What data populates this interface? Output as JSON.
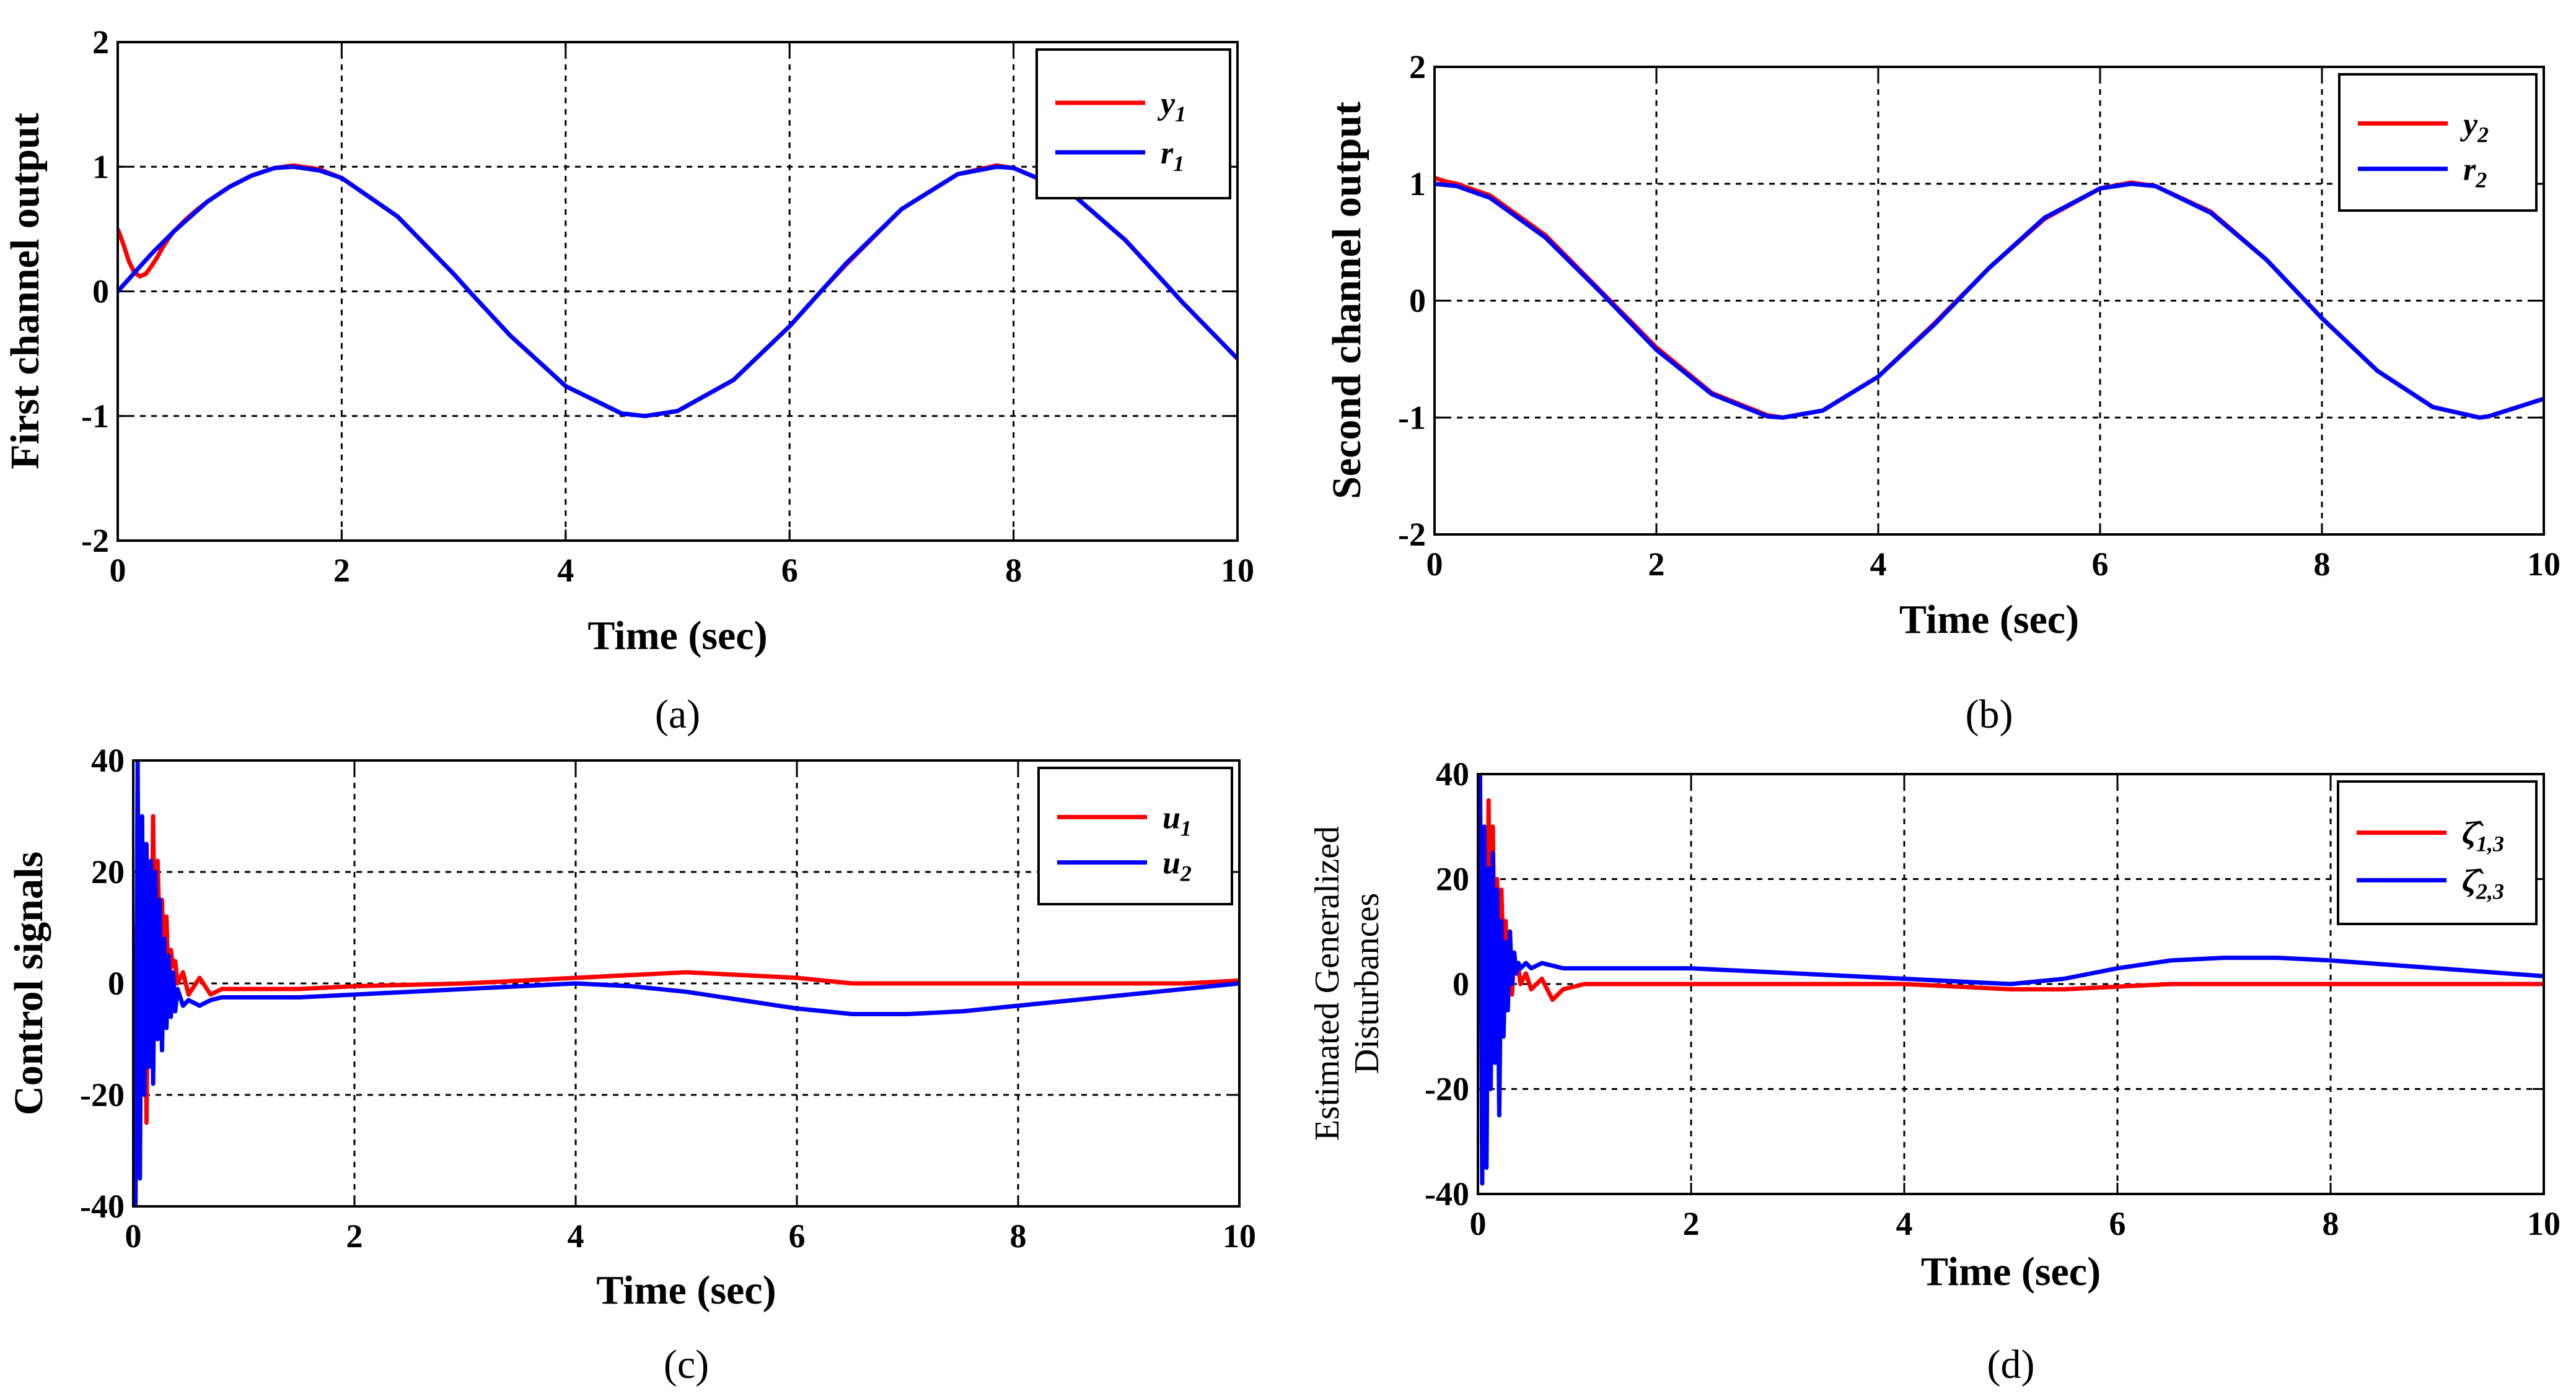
{
  "figure": {
    "colors": {
      "red": "#ff0000",
      "blue": "#0000ff",
      "grid": "#000000"
    }
  },
  "chart_data": [
    {
      "id": "a",
      "type": "line",
      "caption": "(a)",
      "xlabel": "Time (sec)",
      "ylabel": "First channel output",
      "xlim": [
        0,
        10
      ],
      "ylim": [
        -2,
        2
      ],
      "xticks": [
        "0",
        "2",
        "4",
        "6",
        "8",
        "10"
      ],
      "yticks": [
        "-2",
        "-1",
        "0",
        "1",
        "2"
      ],
      "grid": true,
      "legend_position": "top-right",
      "series": [
        {
          "name": "y",
          "sub": "1",
          "color": "#ff0000",
          "x": [
            0,
            0.05,
            0.1,
            0.15,
            0.2,
            0.25,
            0.3,
            0.35,
            0.4,
            0.45,
            0.5,
            0.6,
            0.7,
            0.8,
            1.0,
            1.2,
            1.4,
            1.57,
            1.8,
            2.0,
            2.5,
            3.0,
            3.14,
            3.5,
            4.0,
            4.5,
            4.71,
            5.0,
            5.5,
            6.0,
            6.28,
            6.5,
            7.0,
            7.5,
            7.85,
            8.0,
            8.5,
            9.0,
            9.42,
            9.5,
            10.0
          ],
          "y": [
            0.5,
            0.38,
            0.24,
            0.15,
            0.12,
            0.14,
            0.2,
            0.27,
            0.35,
            0.42,
            0.48,
            0.57,
            0.65,
            0.72,
            0.84,
            0.93,
            0.99,
            1.01,
            0.98,
            0.91,
            0.6,
            0.14,
            0.0,
            -0.35,
            -0.76,
            -0.98,
            -1.0,
            -0.96,
            -0.71,
            -0.28,
            0.0,
            0.21,
            0.66,
            0.94,
            1.01,
            0.99,
            0.8,
            0.41,
            0.0,
            -0.08,
            -0.54
          ]
        },
        {
          "name": "r",
          "sub": "1",
          "color": "#0000ff",
          "x": [
            0,
            0.1,
            0.2,
            0.3,
            0.4,
            0.5,
            0.6,
            0.7,
            0.8,
            1.0,
            1.2,
            1.4,
            1.57,
            1.8,
            2.0,
            2.5,
            3.0,
            3.14,
            3.5,
            4.0,
            4.5,
            4.71,
            5.0,
            5.5,
            6.0,
            6.28,
            6.5,
            7.0,
            7.5,
            7.85,
            8.0,
            8.5,
            9.0,
            9.42,
            9.5,
            10.0
          ],
          "y": [
            0.0,
            0.1,
            0.2,
            0.3,
            0.39,
            0.48,
            0.56,
            0.64,
            0.72,
            0.84,
            0.93,
            0.99,
            1.0,
            0.97,
            0.91,
            0.6,
            0.14,
            0.0,
            -0.35,
            -0.76,
            -0.98,
            -1.0,
            -0.96,
            -0.71,
            -0.28,
            0.0,
            0.22,
            0.66,
            0.94,
            1.0,
            0.99,
            0.8,
            0.41,
            0.0,
            -0.08,
            -0.54
          ]
        }
      ]
    },
    {
      "id": "b",
      "type": "line",
      "caption": "(b)",
      "xlabel": "Time (sec)",
      "ylabel": "Second channel output",
      "xlim": [
        0,
        10
      ],
      "ylim": [
        -2,
        2
      ],
      "xticks": [
        "0",
        "2",
        "4",
        "6",
        "8",
        "10"
      ],
      "yticks": [
        "-2",
        "-1",
        "0",
        "1",
        "2"
      ],
      "grid": true,
      "legend_position": "top-right",
      "series": [
        {
          "name": "y",
          "sub": "2",
          "color": "#ff0000",
          "x": [
            0,
            0.1,
            0.2,
            0.5,
            1.0,
            1.5,
            2.0,
            2.5,
            3.0,
            3.14,
            3.5,
            4.0,
            4.5,
            5.0,
            5.5,
            6.0,
            6.28,
            6.5,
            7.0,
            7.5,
            8.0,
            8.5,
            9.0,
            9.42,
            9.5,
            10.0
          ],
          "y": [
            1.05,
            1.02,
            1.0,
            0.9,
            0.56,
            0.08,
            -0.4,
            -0.79,
            -0.98,
            -1.0,
            -0.94,
            -0.65,
            -0.2,
            0.28,
            0.7,
            0.96,
            1.01,
            0.98,
            0.76,
            0.35,
            -0.15,
            -0.6,
            -0.91,
            -1.0,
            -0.99,
            -0.84
          ]
        },
        {
          "name": "r",
          "sub": "2",
          "color": "#0000ff",
          "x": [
            0,
            0.2,
            0.5,
            1.0,
            1.5,
            2.0,
            2.5,
            3.0,
            3.14,
            3.5,
            4.0,
            4.5,
            5.0,
            5.5,
            6.0,
            6.28,
            6.5,
            7.0,
            7.5,
            8.0,
            8.5,
            9.0,
            9.42,
            9.5,
            10.0
          ],
          "y": [
            1.0,
            0.98,
            0.88,
            0.54,
            0.07,
            -0.42,
            -0.8,
            -0.99,
            -1.0,
            -0.94,
            -0.65,
            -0.21,
            0.28,
            0.71,
            0.96,
            1.0,
            0.98,
            0.75,
            0.35,
            -0.15,
            -0.6,
            -0.91,
            -1.0,
            -0.99,
            -0.84
          ]
        }
      ]
    },
    {
      "id": "c",
      "type": "line",
      "caption": "(c)",
      "xlabel": "Time (sec)",
      "ylabel": "Control signals",
      "xlim": [
        0,
        10
      ],
      "ylim": [
        -40,
        40
      ],
      "xticks": [
        "0",
        "2",
        "4",
        "6",
        "8",
        "10"
      ],
      "yticks": [
        "-40",
        "-20",
        "0",
        "20",
        "40"
      ],
      "grid": true,
      "legend_position": "top-right",
      "series": [
        {
          "name": "u",
          "sub": "1",
          "color": "#ff0000",
          "x": [
            0,
            0.02,
            0.04,
            0.06,
            0.08,
            0.1,
            0.12,
            0.14,
            0.16,
            0.18,
            0.2,
            0.22,
            0.24,
            0.26,
            0.28,
            0.3,
            0.32,
            0.34,
            0.36,
            0.38,
            0.4,
            0.45,
            0.5,
            0.6,
            0.7,
            0.8,
            1.0,
            1.5,
            2.0,
            3.0,
            4.0,
            4.5,
            5.0,
            5.5,
            6.0,
            6.5,
            7.0,
            8.0,
            9.0,
            9.5,
            10.0
          ],
          "y": [
            0,
            10,
            -8,
            20,
            -15,
            25,
            -25,
            18,
            -10,
            30,
            -5,
            22,
            8,
            15,
            2,
            12,
            -2,
            6,
            3,
            4,
            0,
            2,
            -2,
            1,
            -2,
            -1,
            -1,
            -1,
            -0.5,
            0,
            1,
            1.5,
            2,
            1.5,
            1,
            0,
            0,
            0,
            0,
            0,
            0.5
          ]
        },
        {
          "name": "u",
          "sub": "2",
          "color": "#0000ff",
          "x": [
            0,
            0.02,
            0.04,
            0.06,
            0.08,
            0.1,
            0.12,
            0.14,
            0.16,
            0.18,
            0.2,
            0.22,
            0.24,
            0.26,
            0.28,
            0.3,
            0.32,
            0.34,
            0.36,
            0.38,
            0.4,
            0.45,
            0.5,
            0.6,
            0.7,
            0.8,
            1.0,
            1.5,
            2.0,
            3.0,
            4.0,
            4.5,
            5.0,
            5.5,
            6.0,
            6.5,
            7.0,
            7.5,
            8.0,
            9.0,
            10.0
          ],
          "y": [
            0,
            -40,
            40,
            -35,
            30,
            -20,
            25,
            -15,
            22,
            -18,
            20,
            -10,
            15,
            -12,
            8,
            -8,
            5,
            -6,
            2,
            -5,
            -1,
            -4,
            -3,
            -4,
            -3,
            -2.5,
            -2.5,
            -2.5,
            -2,
            -1,
            0,
            -0.5,
            -1.5,
            -3,
            -4.5,
            -5.5,
            -5.5,
            -5,
            -4,
            -2,
            0
          ]
        }
      ]
    },
    {
      "id": "d",
      "type": "line",
      "caption": "(d)",
      "xlabel": "Time (sec)",
      "ylabel": "Estimated Generalized Disturbances",
      "xlim": [
        0,
        10
      ],
      "ylim": [
        -40,
        40
      ],
      "xticks": [
        "0",
        "2",
        "4",
        "6",
        "8",
        "10"
      ],
      "yticks": [
        "-40",
        "-20",
        "0",
        "20",
        "40"
      ],
      "grid": true,
      "legend_position": "top-right",
      "series": [
        {
          "name": "ζ̂",
          "sub": "1,3",
          "color": "#ff0000",
          "x": [
            0,
            0.02,
            0.04,
            0.06,
            0.08,
            0.1,
            0.12,
            0.14,
            0.16,
            0.18,
            0.2,
            0.22,
            0.24,
            0.26,
            0.28,
            0.3,
            0.32,
            0.34,
            0.36,
            0.38,
            0.4,
            0.45,
            0.5,
            0.6,
            0.7,
            0.8,
            1.0,
            1.5,
            2.0,
            3.0,
            4.0,
            4.5,
            5.0,
            5.5,
            6.0,
            6.5,
            7.0,
            8.0,
            9.0,
            10.0
          ],
          "y": [
            0,
            15,
            -10,
            25,
            -20,
            35,
            -15,
            30,
            -5,
            20,
            0,
            18,
            5,
            12,
            2,
            10,
            -2,
            6,
            2,
            3,
            0,
            2,
            -1,
            1,
            -3,
            -1,
            0,
            0,
            0,
            0,
            0,
            -0.5,
            -1,
            -1,
            -0.5,
            0,
            0,
            0,
            0,
            0
          ]
        },
        {
          "name": "ζ̂",
          "sub": "2,3",
          "color": "#0000ff",
          "x": [
            0,
            0.02,
            0.04,
            0.06,
            0.08,
            0.1,
            0.12,
            0.14,
            0.16,
            0.18,
            0.2,
            0.22,
            0.24,
            0.26,
            0.28,
            0.3,
            0.32,
            0.34,
            0.36,
            0.38,
            0.4,
            0.45,
            0.5,
            0.6,
            0.7,
            0.8,
            1.0,
            1.5,
            2.0,
            3.0,
            4.0,
            4.5,
            5.0,
            5.5,
            6.0,
            6.5,
            7.0,
            7.5,
            8.0,
            9.0,
            10.0
          ],
          "y": [
            0,
            40,
            -38,
            30,
            -35,
            22,
            -20,
            25,
            -15,
            18,
            -25,
            12,
            -10,
            8,
            -5,
            10,
            0,
            6,
            2,
            4,
            3,
            4,
            3,
            4,
            3.5,
            3,
            3,
            3,
            3,
            2,
            1,
            0.5,
            0,
            1,
            3,
            4.5,
            5,
            5,
            4.5,
            3,
            1.5
          ]
        }
      ]
    }
  ]
}
